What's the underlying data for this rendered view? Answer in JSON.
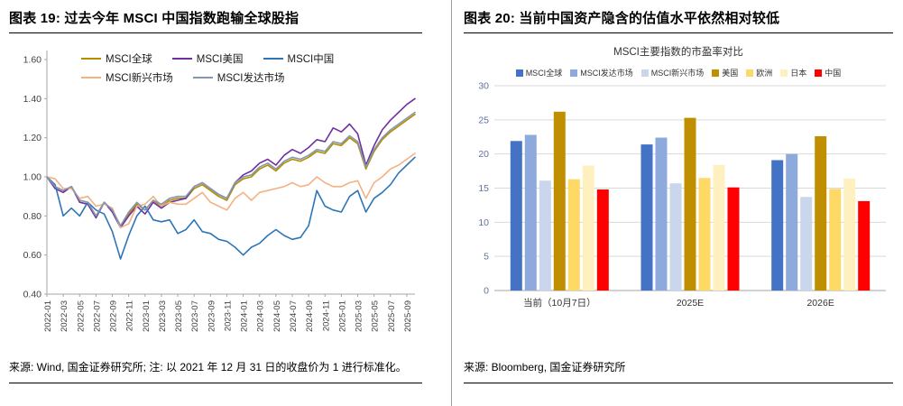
{
  "page": {
    "background": "#ffffff"
  },
  "left_panel": {
    "title": "图表 19: 过去今年 MSCI 中国指数跑输全球股指",
    "source": "来源: Wind, 国金证券研究所; 注: 以 2021 年 12 月 31 日的收盘价为 1 进行标准化。"
  },
  "right_panel": {
    "title": "图表 20: 当前中国资产隐含的估值水平依然相对较低",
    "source": "来源: Bloomberg, 国金证券研究所"
  },
  "chart_data": [
    {
      "type": "line",
      "panel": "left",
      "title": "",
      "xlabel": "",
      "ylabel": "",
      "ylim": [
        0.4,
        1.6
      ],
      "yticks": [
        0.4,
        0.6,
        0.8,
        1.0,
        1.2,
        1.4,
        1.6
      ],
      "grid": false,
      "legend_position": "top-inside",
      "legend_rows": [
        [
          "MSCI全球",
          "MSCI美国",
          "MSCI中国"
        ],
        [
          "MSCI新兴市场",
          "MSCI发达市场"
        ]
      ],
      "x": [
        "2022-01",
        "2022-02",
        "2022-03",
        "2022-04",
        "2022-05",
        "2022-06",
        "2022-07",
        "2022-08",
        "2022-09",
        "2022-10",
        "2022-11",
        "2022-12",
        "2023-01",
        "2023-02",
        "2023-03",
        "2023-04",
        "2023-05",
        "2023-06",
        "2023-07",
        "2023-08",
        "2023-09",
        "2023-10",
        "2023-11",
        "2023-12",
        "2024-01",
        "2024-02",
        "2024-03",
        "2024-04",
        "2024-05",
        "2024-06",
        "2024-07",
        "2024-08",
        "2024-09",
        "2024-10",
        "2024-11",
        "2024-12",
        "2025-01",
        "2025-02",
        "2025-03",
        "2025-04",
        "2025-05",
        "2025-06",
        "2025-07",
        "2025-08",
        "2025-09",
        "2025-10"
      ],
      "x_tick_labels": [
        "2022-01",
        "2022-03",
        "2022-05",
        "2022-07",
        "2022-09",
        "2022-11",
        "2023-01",
        "2023-03",
        "2023-05",
        "2023-07",
        "2023-09",
        "2023-11",
        "2024-01",
        "2024-03",
        "2024-05",
        "2024-07",
        "2024-09",
        "2024-11",
        "2025-01",
        "2025-03",
        "2025-05",
        "2025-07",
        "2025-09"
      ],
      "series": [
        {
          "name": "MSCI全球",
          "color": "#B38F00",
          "values": [
            1.0,
            0.95,
            0.93,
            0.95,
            0.88,
            0.87,
            0.8,
            0.87,
            0.83,
            0.75,
            0.81,
            0.86,
            0.83,
            0.88,
            0.85,
            0.88,
            0.89,
            0.89,
            0.94,
            0.96,
            0.93,
            0.9,
            0.88,
            0.96,
            0.99,
            1.0,
            1.04,
            1.06,
            1.03,
            1.07,
            1.09,
            1.08,
            1.1,
            1.13,
            1.12,
            1.17,
            1.16,
            1.2,
            1.17,
            1.04,
            1.13,
            1.19,
            1.23,
            1.26,
            1.29,
            1.32
          ]
        },
        {
          "name": "MSCI美国",
          "color": "#7030A0",
          "values": [
            1.0,
            0.94,
            0.92,
            0.95,
            0.87,
            0.86,
            0.79,
            0.87,
            0.82,
            0.74,
            0.8,
            0.85,
            0.81,
            0.87,
            0.84,
            0.87,
            0.88,
            0.89,
            0.95,
            0.97,
            0.94,
            0.91,
            0.89,
            0.97,
            1.01,
            1.03,
            1.07,
            1.09,
            1.06,
            1.11,
            1.14,
            1.12,
            1.15,
            1.19,
            1.18,
            1.25,
            1.23,
            1.27,
            1.22,
            1.06,
            1.16,
            1.24,
            1.29,
            1.33,
            1.37,
            1.4
          ]
        },
        {
          "name": "MSCI中国",
          "color": "#2E75B6",
          "values": [
            1.0,
            0.96,
            0.8,
            0.84,
            0.8,
            0.87,
            0.83,
            0.81,
            0.72,
            0.58,
            0.7,
            0.8,
            0.85,
            0.78,
            0.77,
            0.78,
            0.71,
            0.73,
            0.78,
            0.72,
            0.71,
            0.68,
            0.67,
            0.64,
            0.6,
            0.64,
            0.66,
            0.7,
            0.73,
            0.7,
            0.68,
            0.69,
            0.75,
            0.93,
            0.85,
            0.83,
            0.82,
            0.9,
            0.93,
            0.82,
            0.89,
            0.92,
            0.96,
            1.02,
            1.06,
            1.1
          ]
        },
        {
          "name": "MSCI新兴市场",
          "color": "#F4B183",
          "values": [
            1.0,
            0.99,
            0.94,
            0.94,
            0.89,
            0.9,
            0.85,
            0.86,
            0.84,
            0.74,
            0.76,
            0.85,
            0.86,
            0.9,
            0.85,
            0.87,
            0.86,
            0.86,
            0.89,
            0.92,
            0.87,
            0.85,
            0.83,
            0.89,
            0.92,
            0.88,
            0.92,
            0.93,
            0.94,
            0.95,
            0.97,
            0.95,
            0.96,
            1.0,
            0.97,
            0.95,
            0.95,
            0.97,
            0.98,
            0.89,
            0.97,
            1.0,
            1.04,
            1.06,
            1.09,
            1.12
          ]
        },
        {
          "name": "MSCI发达市场",
          "color": "#8497B0",
          "values": [
            1.0,
            0.95,
            0.93,
            0.95,
            0.88,
            0.87,
            0.8,
            0.87,
            0.83,
            0.75,
            0.82,
            0.87,
            0.83,
            0.88,
            0.86,
            0.89,
            0.9,
            0.9,
            0.95,
            0.97,
            0.94,
            0.91,
            0.89,
            0.97,
            1.0,
            1.01,
            1.05,
            1.07,
            1.04,
            1.08,
            1.1,
            1.09,
            1.11,
            1.14,
            1.13,
            1.18,
            1.17,
            1.21,
            1.18,
            1.05,
            1.14,
            1.2,
            1.24,
            1.27,
            1.3,
            1.33
          ]
        }
      ]
    },
    {
      "type": "bar",
      "panel": "right",
      "title": "MSCI主要指数的市盈率对比",
      "xlabel": "",
      "ylabel": "",
      "ylim": [
        0,
        30
      ],
      "yticks": [
        0,
        5,
        10,
        15,
        20,
        25,
        30
      ],
      "grid": true,
      "legend_position": "top",
      "categories": [
        "当前（10月7日）",
        "2025E",
        "2026E"
      ],
      "series": [
        {
          "name": "MSCI全球",
          "color": "#4472C4",
          "values": [
            21.9,
            21.4,
            19.1
          ]
        },
        {
          "name": "MSCI发达市场",
          "color": "#8EA9DB",
          "values": [
            22.8,
            22.4,
            20.0
          ]
        },
        {
          "name": "MSCI新兴市场",
          "color": "#C9D6EC",
          "values": [
            16.1,
            15.7,
            13.7
          ]
        },
        {
          "name": "美国",
          "color": "#BF8F00",
          "values": [
            26.2,
            25.3,
            22.6
          ]
        },
        {
          "name": "欧洲",
          "color": "#FFD966",
          "values": [
            16.3,
            16.5,
            14.9
          ]
        },
        {
          "name": "日本",
          "color": "#FFF0C0",
          "values": [
            18.3,
            18.4,
            16.4
          ]
        },
        {
          "name": "中国",
          "color": "#FF0000",
          "values": [
            14.8,
            15.1,
            13.1
          ]
        }
      ]
    }
  ]
}
